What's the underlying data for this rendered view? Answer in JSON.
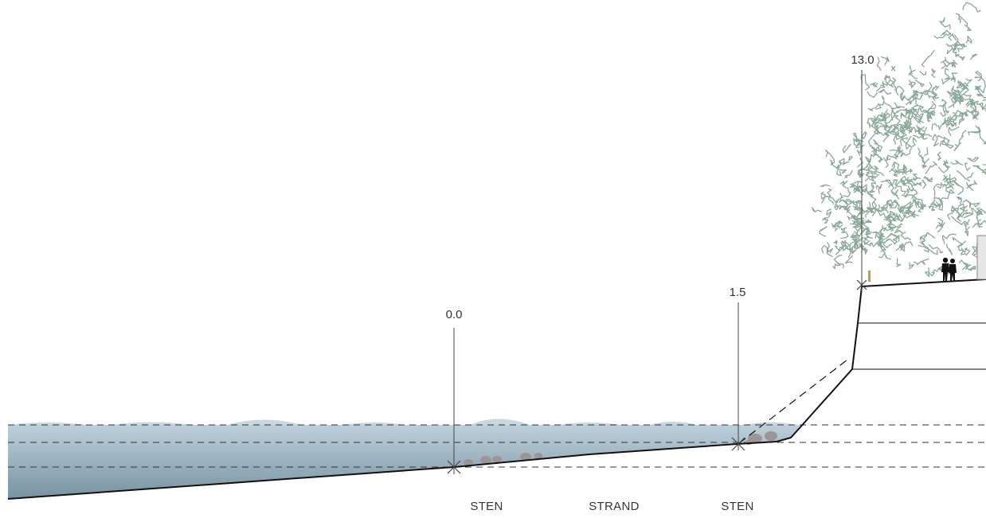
{
  "levels": [
    {
      "value": "0.0"
    },
    {
      "value": "1.5"
    },
    {
      "value": "13.0"
    }
  ],
  "materials": [
    {
      "label": "STEN"
    },
    {
      "label": "STRAND"
    },
    {
      "label": "STEN"
    }
  ],
  "colors": {
    "water_top": "#bdd0da",
    "water_bottom": "#7793a1",
    "wave": "#c9d8e0",
    "ground_line": "#111111",
    "foliage": "#8aa898",
    "stone": "#9b9696",
    "dim_line": "#444444"
  },
  "icons": [
    "tree-foliage",
    "people-silhouette",
    "stones"
  ]
}
